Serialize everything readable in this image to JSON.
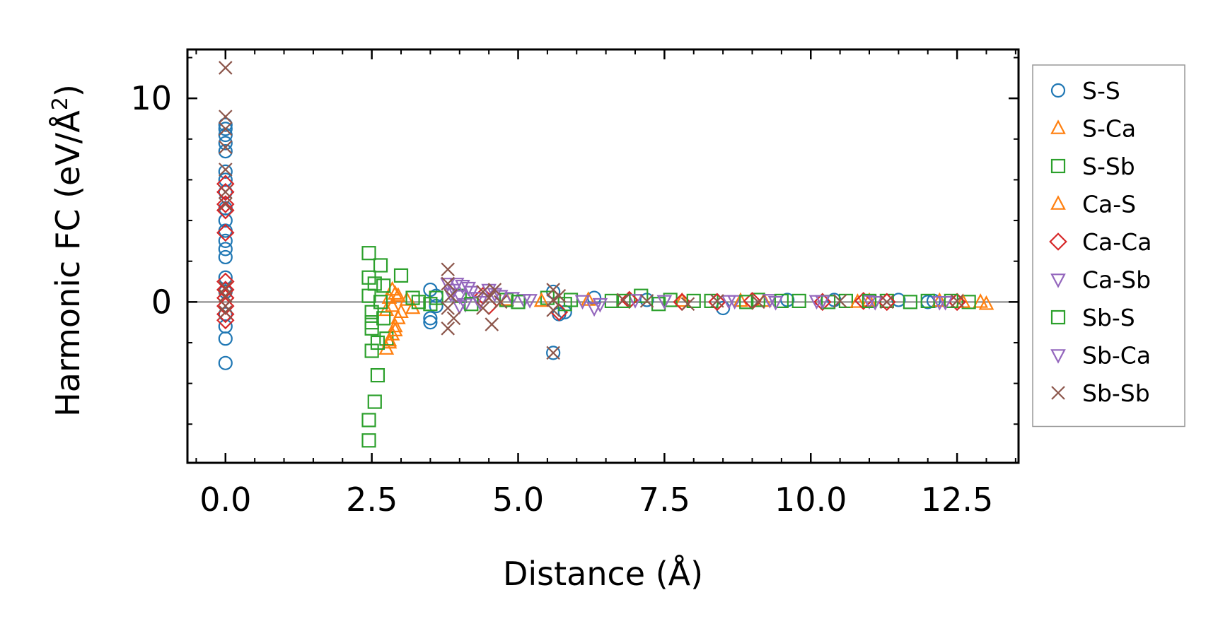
{
  "chart_data": {
    "type": "scatter",
    "xlabel": "Distance (Å)",
    "ylabel_main": "Harmonic FC (eV/Å",
    "ylabel_sup": "2",
    "ylabel_close": ")",
    "xlim": [
      -0.65,
      13.55
    ],
    "ylim": [
      -7.9,
      12.4
    ],
    "x_ticks": [
      {
        "value": 0.0,
        "label": "0.0"
      },
      {
        "value": 2.5,
        "label": "2.5"
      },
      {
        "value": 5.0,
        "label": "5.0"
      },
      {
        "value": 7.5,
        "label": "7.5"
      },
      {
        "value": 10.0,
        "label": "10.0"
      },
      {
        "value": 12.5,
        "label": "12.5"
      }
    ],
    "y_ticks": [
      {
        "value": 0,
        "label": "0"
      },
      {
        "value": 10,
        "label": "10"
      }
    ],
    "reference_line_y": 0,
    "legend_position": "outside-right",
    "series": [
      {
        "name": "S-S",
        "marker": "circle",
        "color": "#1f77b4",
        "points": [
          [
            0.0,
            -3.0
          ],
          [
            0.0,
            -1.8
          ],
          [
            0.0,
            -1.2
          ],
          [
            0.0,
            -0.6
          ],
          [
            0.0,
            0.5
          ],
          [
            0.0,
            1.2
          ],
          [
            0.0,
            2.2
          ],
          [
            0.0,
            2.6
          ],
          [
            0.0,
            3.0
          ],
          [
            0.0,
            3.5
          ],
          [
            0.0,
            4.0
          ],
          [
            0.0,
            4.6
          ],
          [
            0.0,
            5.4
          ],
          [
            0.0,
            6.0
          ],
          [
            0.0,
            6.4
          ],
          [
            0.0,
            7.4
          ],
          [
            0.0,
            7.8
          ],
          [
            0.0,
            8.2
          ],
          [
            0.0,
            8.5
          ],
          [
            0.0,
            8.7
          ],
          [
            3.5,
            -1.0
          ],
          [
            3.5,
            -0.8
          ],
          [
            3.5,
            0.6
          ],
          [
            3.6,
            0.3
          ],
          [
            3.6,
            -0.2
          ],
          [
            5.6,
            -2.5
          ],
          [
            5.6,
            0.5
          ],
          [
            5.7,
            -0.6
          ],
          [
            5.8,
            -0.5
          ],
          [
            6.3,
            0.2
          ],
          [
            7.2,
            0.1
          ],
          [
            8.5,
            -0.3
          ],
          [
            9.6,
            0.1
          ],
          [
            10.4,
            0.1
          ],
          [
            11.5,
            0.1
          ],
          [
            12.0,
            0.0
          ],
          [
            12.1,
            0.05
          ]
        ]
      },
      {
        "name": "S-Ca",
        "marker": "triangle-up",
        "color": "#ff7f0e",
        "points": [
          [
            2.75,
            -2.3
          ],
          [
            2.8,
            -2.0
          ],
          [
            2.85,
            -1.6
          ],
          [
            2.9,
            -1.2
          ],
          [
            2.95,
            -0.8
          ],
          [
            2.75,
            -0.4
          ],
          [
            2.8,
            0.2
          ],
          [
            2.85,
            0.6
          ],
          [
            2.95,
            0.3
          ],
          [
            3.1,
            0.1
          ],
          [
            3.2,
            -0.3
          ],
          [
            4.8,
            0.1
          ],
          [
            6.2,
            0.1
          ],
          [
            7.8,
            0.05
          ],
          [
            9.2,
            0.05
          ],
          [
            11.0,
            0.05
          ],
          [
            12.2,
            0.05
          ],
          [
            12.9,
            0.0
          ],
          [
            13.0,
            -0.1
          ]
        ]
      },
      {
        "name": "S-Sb",
        "marker": "square",
        "color": "#2ca02c",
        "points": [
          [
            2.45,
            2.4
          ],
          [
            2.45,
            1.2
          ],
          [
            2.45,
            0.3
          ],
          [
            2.5,
            -0.5
          ],
          [
            2.5,
            -1.3
          ],
          [
            2.5,
            -2.4
          ],
          [
            2.45,
            -5.8
          ],
          [
            2.45,
            -6.8
          ],
          [
            2.55,
            -4.9
          ],
          [
            2.6,
            -3.6
          ],
          [
            2.65,
            1.8
          ],
          [
            2.7,
            0.8
          ],
          [
            2.7,
            -0.8
          ],
          [
            2.75,
            -1.8
          ],
          [
            3.0,
            1.3
          ],
          [
            3.2,
            0.2
          ],
          [
            3.5,
            -0.1
          ],
          [
            4.0,
            0.3
          ],
          [
            4.8,
            0.1
          ],
          [
            5.5,
            0.2
          ],
          [
            5.9,
            0.1
          ],
          [
            6.6,
            0.05
          ],
          [
            7.1,
            0.3
          ],
          [
            7.6,
            0.1
          ],
          [
            8.3,
            0.05
          ],
          [
            9.1,
            0.1
          ],
          [
            9.8,
            0.05
          ],
          [
            10.6,
            0.05
          ],
          [
            11.3,
            0.05
          ],
          [
            12.0,
            0.05
          ],
          [
            12.7,
            0.0
          ]
        ]
      },
      {
        "name": "Ca-S",
        "marker": "triangle-up",
        "color": "#ff7f0e",
        "points": [
          [
            2.8,
            -1.9
          ],
          [
            2.9,
            -1.4
          ],
          [
            2.85,
            -0.2
          ],
          [
            2.9,
            0.4
          ],
          [
            3.0,
            -0.5
          ],
          [
            5.4,
            0.05
          ],
          [
            8.8,
            0.05
          ],
          [
            10.8,
            0.0
          ],
          [
            12.6,
            0.0
          ]
        ]
      },
      {
        "name": "Ca-Ca",
        "marker": "diamond",
        "color": "#d62728",
        "points": [
          [
            0.0,
            5.8
          ],
          [
            0.0,
            5.4
          ],
          [
            0.0,
            4.8
          ],
          [
            0.0,
            4.5
          ],
          [
            0.0,
            3.4
          ],
          [
            0.0,
            1.0
          ],
          [
            0.0,
            0.6
          ],
          [
            0.0,
            0.2
          ],
          [
            0.0,
            -0.2
          ],
          [
            0.0,
            -0.6
          ],
          [
            0.0,
            -0.9
          ],
          [
            4.4,
            0.3
          ],
          [
            4.5,
            -0.2
          ],
          [
            5.7,
            -0.5
          ],
          [
            6.9,
            0.1
          ],
          [
            7.8,
            0.0
          ],
          [
            8.4,
            0.0
          ],
          [
            9.0,
            0.05
          ],
          [
            10.2,
            0.0
          ],
          [
            10.9,
            0.05
          ],
          [
            11.3,
            0.0
          ],
          [
            12.5,
            0.0
          ]
        ]
      },
      {
        "name": "Ca-Sb",
        "marker": "triangle-down",
        "color": "#9467bd",
        "points": [
          [
            3.8,
            0.9
          ],
          [
            3.9,
            0.6
          ],
          [
            3.95,
            0.9
          ],
          [
            4.0,
            0.3
          ],
          [
            4.05,
            0.8
          ],
          [
            4.1,
            -0.1
          ],
          [
            4.2,
            0.5
          ],
          [
            4.3,
            0.2
          ],
          [
            4.6,
            0.4
          ],
          [
            4.9,
            0.2
          ],
          [
            5.1,
            0.1
          ],
          [
            6.3,
            -0.3
          ],
          [
            7.0,
            0.1
          ],
          [
            8.7,
            0.05
          ],
          [
            9.3,
            0.1
          ],
          [
            10.1,
            0.05
          ],
          [
            11.0,
            0.05
          ],
          [
            12.2,
            0.0
          ]
        ]
      },
      {
        "name": "Sb-S",
        "marker": "square",
        "color": "#2ca02c",
        "points": [
          [
            2.5,
            -1.0
          ],
          [
            2.55,
            0.9
          ],
          [
            2.6,
            -2.0
          ],
          [
            2.65,
            0.0
          ],
          [
            3.3,
            0.0
          ],
          [
            3.6,
            0.2
          ],
          [
            4.2,
            -0.1
          ],
          [
            5.0,
            0.0
          ],
          [
            5.8,
            -0.1
          ],
          [
            6.8,
            0.05
          ],
          [
            7.4,
            -0.1
          ],
          [
            8.0,
            0.05
          ],
          [
            8.9,
            0.0
          ],
          [
            9.5,
            0.05
          ],
          [
            10.3,
            0.0
          ],
          [
            11.0,
            0.05
          ],
          [
            11.7,
            0.0
          ],
          [
            12.4,
            0.05
          ]
        ]
      },
      {
        "name": "Sb-Ca",
        "marker": "triangle-down",
        "color": "#9467bd",
        "points": [
          [
            3.85,
            0.4
          ],
          [
            4.0,
            -0.2
          ],
          [
            4.15,
            0.7
          ],
          [
            4.35,
            0.0
          ],
          [
            4.5,
            0.6
          ],
          [
            4.7,
            0.3
          ],
          [
            5.2,
            0.1
          ],
          [
            6.1,
            0.05
          ],
          [
            6.4,
            -0.1
          ],
          [
            7.5,
            0.05
          ],
          [
            8.6,
            0.05
          ],
          [
            9.4,
            0.0
          ],
          [
            10.2,
            0.05
          ],
          [
            11.1,
            0.0
          ],
          [
            12.3,
            0.0
          ]
        ]
      },
      {
        "name": "Sb-Sb",
        "marker": "x",
        "color": "#8c564b",
        "points": [
          [
            0.0,
            11.5
          ],
          [
            0.0,
            9.1
          ],
          [
            0.0,
            8.5
          ],
          [
            0.0,
            7.6
          ],
          [
            0.0,
            6.5
          ],
          [
            0.0,
            5.4
          ],
          [
            0.0,
            4.8
          ],
          [
            0.0,
            0.7
          ],
          [
            0.0,
            0.3
          ],
          [
            0.0,
            -0.2
          ],
          [
            0.0,
            -0.5
          ],
          [
            3.8,
            1.6
          ],
          [
            3.8,
            0.9
          ],
          [
            3.85,
            0.3
          ],
          [
            3.8,
            -0.3
          ],
          [
            3.8,
            -1.3
          ],
          [
            3.9,
            -0.8
          ],
          [
            4.4,
            0.5
          ],
          [
            4.4,
            -0.3
          ],
          [
            4.5,
            0.2
          ],
          [
            4.55,
            -1.1
          ],
          [
            4.6,
            0.6
          ],
          [
            4.7,
            0.0
          ],
          [
            5.6,
            0.6
          ],
          [
            5.6,
            0.1
          ],
          [
            5.6,
            -0.4
          ],
          [
            5.6,
            -2.5
          ],
          [
            5.7,
            0.3
          ],
          [
            6.8,
            0.1
          ],
          [
            7.2,
            0.05
          ],
          [
            7.9,
            -0.1
          ],
          [
            8.4,
            0.05
          ],
          [
            9.1,
            0.0
          ],
          [
            10.5,
            0.05
          ],
          [
            11.3,
            0.0
          ],
          [
            12.5,
            0.05
          ]
        ]
      }
    ]
  }
}
